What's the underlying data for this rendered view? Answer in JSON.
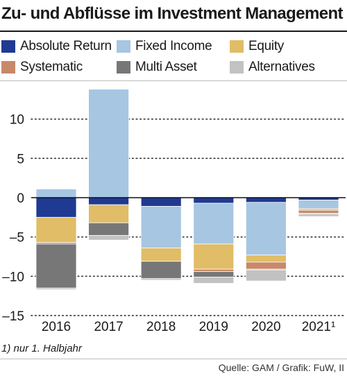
{
  "chart_data": {
    "type": "bar",
    "stacked": true,
    "title": "Zu- und Abflüsse im Investment Management",
    "xlabel": "",
    "ylabel": "",
    "categories": [
      "2016",
      "2017",
      "2018",
      "2019",
      "2020",
      "2021¹"
    ],
    "ylim": [
      -15,
      15
    ],
    "yticks": [
      10,
      5,
      0,
      -5,
      -10,
      -15
    ],
    "ytick_labels": [
      "10",
      "5",
      "0",
      "–5",
      "–10",
      "–15"
    ],
    "grid": "dotted horizontal",
    "legend_position": "top",
    "series": [
      {
        "name": "Absolute Return",
        "color": "#1f3a93",
        "values": [
          -2.5,
          -0.9,
          -1.1,
          -0.7,
          -0.6,
          -0.3
        ]
      },
      {
        "name": "Fixed Income",
        "color": "#a7c6e2",
        "values": [
          1.1,
          13.8,
          -5.3,
          -5.2,
          -6.7,
          -1.1
        ]
      },
      {
        "name": "Equity",
        "color": "#e0bd66",
        "values": [
          -3.2,
          -2.3,
          -1.7,
          -3.2,
          -0.9,
          -0.2
        ]
      },
      {
        "name": "Systematic",
        "color": "#c8896a",
        "values": [
          -0.2,
          0.0,
          0.0,
          -0.3,
          -0.9,
          -0.4
        ]
      },
      {
        "name": "Multi Asset",
        "color": "#777777",
        "values": [
          -5.6,
          -1.6,
          -2.2,
          -0.7,
          -0.1,
          -0.1
        ]
      },
      {
        "name": "Alternatives",
        "color": "#c2c2c2",
        "values": [
          -0.2,
          -0.6,
          -0.2,
          -0.8,
          -1.4,
          -0.3
        ]
      }
    ],
    "footnote": "1) nur 1. Halbjahr",
    "source": "Quelle: GAM / Grafik: FuW, II"
  }
}
